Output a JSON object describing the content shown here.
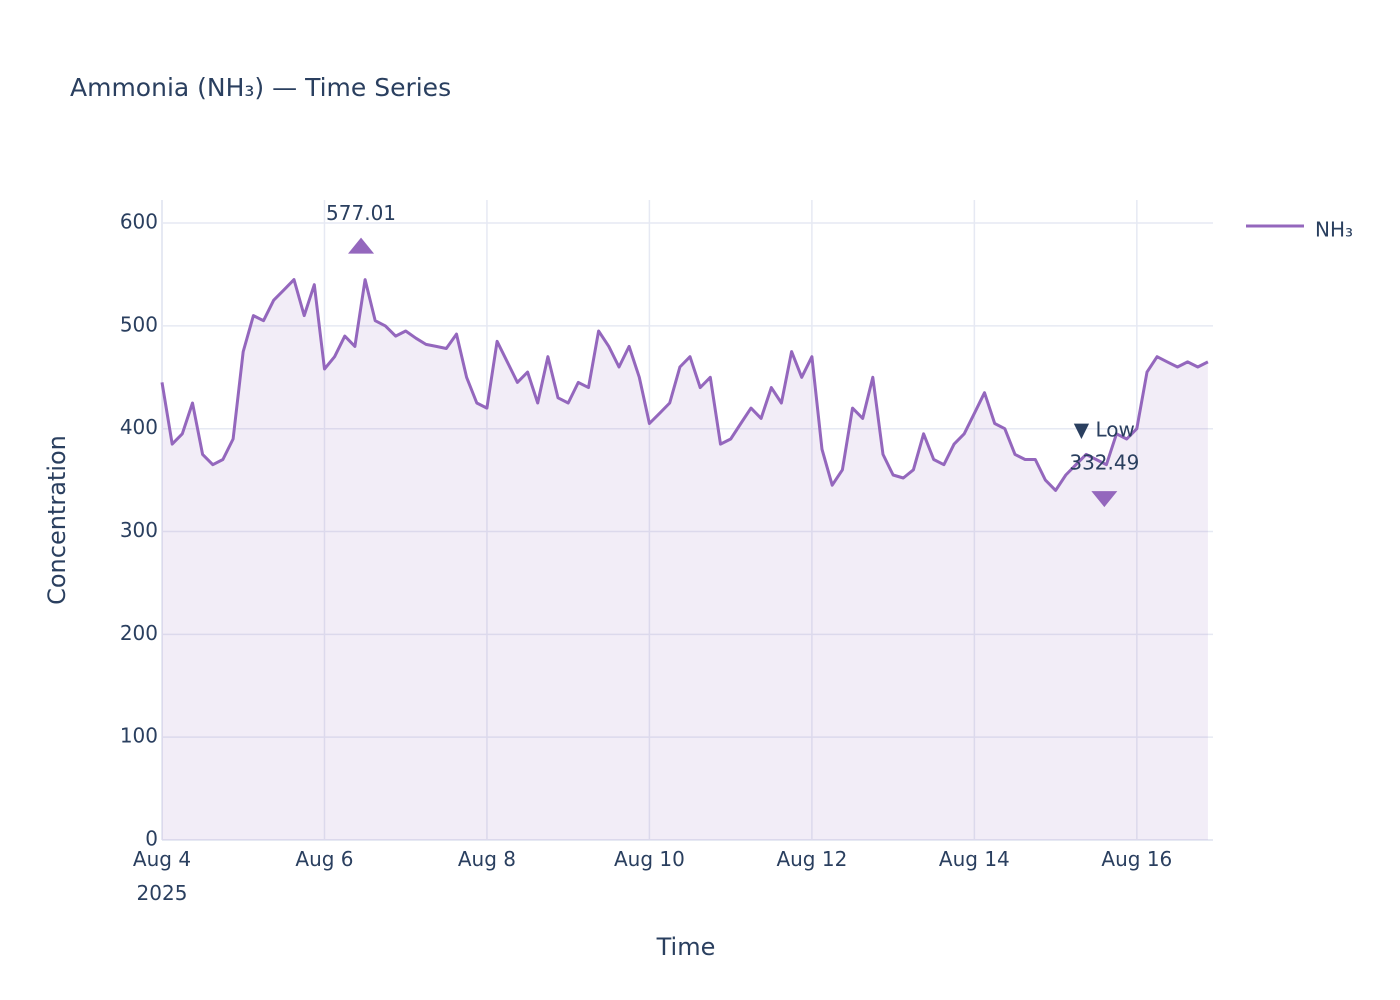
{
  "chart_data": {
    "type": "line",
    "title": "Ammonia (NH₃) — Time Series",
    "x_label": "Time",
    "y_label": "Concentration",
    "x": [
      "2025-08-04 00:00",
      "2025-08-04 03:00",
      "2025-08-04 06:00",
      "2025-08-04 09:00",
      "2025-08-04 12:00",
      "2025-08-04 15:00",
      "2025-08-04 18:00",
      "2025-08-04 21:00",
      "2025-08-05 00:00",
      "2025-08-05 03:00",
      "2025-08-05 06:00",
      "2025-08-05 09:00",
      "2025-08-05 12:00",
      "2025-08-05 15:00",
      "2025-08-05 18:00",
      "2025-08-05 21:00",
      "2025-08-06 00:00",
      "2025-08-06 03:00",
      "2025-08-06 06:00",
      "2025-08-06 09:00",
      "2025-08-06 12:00",
      "2025-08-06 15:00",
      "2025-08-06 18:00",
      "2025-08-06 21:00",
      "2025-08-07 00:00",
      "2025-08-07 03:00",
      "2025-08-07 06:00",
      "2025-08-07 09:00",
      "2025-08-07 12:00",
      "2025-08-07 15:00",
      "2025-08-07 18:00",
      "2025-08-07 21:00",
      "2025-08-08 00:00",
      "2025-08-08 03:00",
      "2025-08-08 06:00",
      "2025-08-08 09:00",
      "2025-08-08 12:00",
      "2025-08-08 15:00",
      "2025-08-08 18:00",
      "2025-08-08 21:00",
      "2025-08-09 00:00",
      "2025-08-09 03:00",
      "2025-08-09 06:00",
      "2025-08-09 09:00",
      "2025-08-09 12:00",
      "2025-08-09 15:00",
      "2025-08-09 18:00",
      "2025-08-09 21:00",
      "2025-08-10 00:00",
      "2025-08-10 03:00",
      "2025-08-10 06:00",
      "2025-08-10 09:00",
      "2025-08-10 12:00",
      "2025-08-10 15:00",
      "2025-08-10 18:00",
      "2025-08-10 21:00",
      "2025-08-11 00:00",
      "2025-08-11 03:00",
      "2025-08-11 06:00",
      "2025-08-11 09:00",
      "2025-08-11 12:00",
      "2025-08-11 15:00",
      "2025-08-11 18:00",
      "2025-08-11 21:00",
      "2025-08-12 00:00",
      "2025-08-12 03:00",
      "2025-08-12 06:00",
      "2025-08-12 09:00",
      "2025-08-12 12:00",
      "2025-08-12 15:00",
      "2025-08-12 18:00",
      "2025-08-12 21:00",
      "2025-08-13 00:00",
      "2025-08-13 03:00",
      "2025-08-13 06:00",
      "2025-08-13 09:00",
      "2025-08-13 12:00",
      "2025-08-13 15:00",
      "2025-08-13 18:00",
      "2025-08-13 21:00",
      "2025-08-14 00:00",
      "2025-08-14 03:00",
      "2025-08-14 06:00",
      "2025-08-14 09:00",
      "2025-08-14 12:00",
      "2025-08-14 15:00",
      "2025-08-14 18:00",
      "2025-08-14 21:00",
      "2025-08-15 00:00",
      "2025-08-15 03:00",
      "2025-08-15 06:00",
      "2025-08-15 09:00",
      "2025-08-15 12:00",
      "2025-08-15 15:00",
      "2025-08-15 18:00",
      "2025-08-15 21:00",
      "2025-08-16 00:00",
      "2025-08-16 03:00",
      "2025-08-16 06:00",
      "2025-08-16 09:00",
      "2025-08-16 12:00",
      "2025-08-16 15:00",
      "2025-08-16 18:00",
      "2025-08-16 21:00"
    ],
    "series": [
      {
        "name": "NH₃",
        "color": "#9467bd",
        "values": [
          445,
          385,
          395,
          425,
          375,
          365,
          370,
          390,
          475,
          510,
          505,
          525,
          535,
          545,
          510,
          540,
          458,
          470,
          490,
          480,
          545,
          505,
          500,
          490,
          495,
          488,
          482,
          480,
          478,
          492,
          450,
          425,
          420,
          485,
          465,
          445,
          455,
          425,
          470,
          430,
          425,
          445,
          440,
          495,
          480,
          460,
          480,
          450,
          405,
          415,
          425,
          460,
          470,
          440,
          450,
          385,
          390,
          405,
          420,
          410,
          440,
          425,
          475,
          450,
          470,
          380,
          345,
          360,
          420,
          410,
          450,
          375,
          355,
          352,
          360,
          395,
          370,
          365,
          385,
          395,
          415,
          435,
          405,
          400,
          375,
          370,
          370,
          350,
          340,
          355,
          365,
          375,
          370,
          365,
          395,
          390,
          400,
          455,
          470,
          465,
          460,
          465,
          460,
          465
        ]
      }
    ],
    "annotations": [
      {
        "text": "577.01",
        "x": "2025-08-06 10:48",
        "y": 577.01,
        "marker": "triangle-up"
      },
      {
        "text": "▼ Low",
        "value_label": "332.49",
        "x": "2025-08-15 14:24",
        "y": 332.49,
        "marker": "triangle-down"
      }
    ],
    "xlim": [
      "2025-08-04 00:00",
      "2025-08-16 22:30"
    ],
    "xticks": [
      {
        "value": "2025-08-04 00:00",
        "label": "Aug 4\n2025"
      },
      {
        "value": "2025-08-06 00:00",
        "label": "Aug 6"
      },
      {
        "value": "2025-08-08 00:00",
        "label": "Aug 8"
      },
      {
        "value": "2025-08-10 00:00",
        "label": "Aug 10"
      },
      {
        "value": "2025-08-12 00:00",
        "label": "Aug 12"
      },
      {
        "value": "2025-08-14 00:00",
        "label": "Aug 14"
      },
      {
        "value": "2025-08-16 00:00",
        "label": "Aug 16"
      }
    ],
    "ylim": [
      0,
      622.4
    ],
    "yticks": [
      0,
      100,
      200,
      300,
      400,
      500,
      600
    ],
    "grid": true,
    "legend": "top-right"
  }
}
